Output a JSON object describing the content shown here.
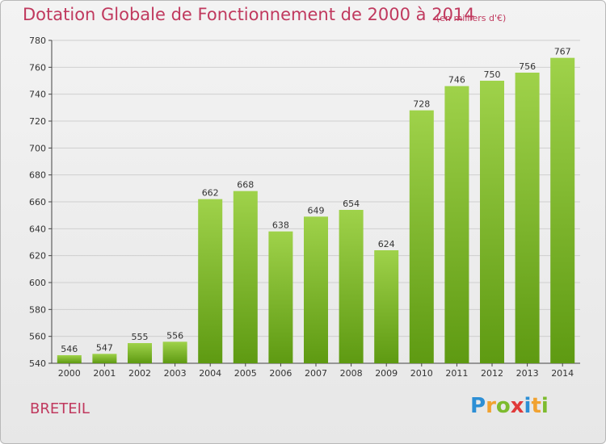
{
  "header": {
    "title": "Dotation Globale de Fonctionnement de 2000 à 2014",
    "subtitle": "(en milliers d'€)"
  },
  "footer": {
    "place": "BRETEIL",
    "logo": "Proxiti"
  },
  "colors": {
    "title": "#c0395e",
    "bar_top": "#9fd24a",
    "bar_bottom": "#5e9a12",
    "grid": "#cfcfcf"
  },
  "chart_data": {
    "type": "bar",
    "title": "Dotation Globale de Fonctionnement de 2000 à 2014",
    "subtitle": "(en milliers d'€)",
    "categories": [
      "2000",
      "2001",
      "2002",
      "2003",
      "2004",
      "2005",
      "2006",
      "2007",
      "2008",
      "2009",
      "2010",
      "2011",
      "2012",
      "2013",
      "2014"
    ],
    "values": [
      546,
      547,
      555,
      556,
      662,
      668,
      638,
      649,
      654,
      624,
      728,
      746,
      750,
      756,
      767
    ],
    "ylim": [
      540,
      780
    ],
    "yticks": [
      540,
      560,
      580,
      600,
      620,
      640,
      660,
      680,
      700,
      720,
      740,
      760,
      780
    ],
    "grid": true,
    "legend": "none"
  }
}
